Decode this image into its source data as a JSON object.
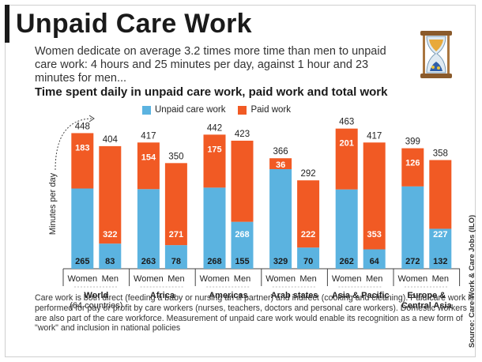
{
  "header": {
    "title": "Unpaid Care Work",
    "subtitle": "Women dedicate on average 3.2 times more time than men to unpaid care work: 4 hours and 25 minutes per day, against 1 hour and 23 minutes for men...",
    "chart_title": "Time spent daily in unpaid care work, paid work and total work"
  },
  "note": "Care work is both direct (feeding a baby or nursing an ill partner) and indirect (cooking and cleaning). Paid care work is performed for pay or profit by care workers (nurses, teachers, doctors and personal care workers). Domestic workers are also part of the care workforce. Measurement of unpaid care work would enable its recognition as a new form of \"work\" and inclusion in national policies",
  "source": "Source: Care Work & Care Jobs (ILO)",
  "colors": {
    "unpaid": "#5bb3e0",
    "paid": "#f15a24"
  },
  "chart_data": {
    "type": "bar",
    "stacked": true,
    "ylabel": "Minutes per day",
    "legend": [
      "Unpaid care work",
      "Paid work"
    ],
    "legend_position": "top",
    "groups": [
      {
        "label": "World",
        "sublabel": "(64 countries)"
      },
      {
        "label": "Africa",
        "sublabel": ""
      },
      {
        "label": "Americas",
        "sublabel": ""
      },
      {
        "label": "Arab states",
        "sublabel": ""
      },
      {
        "label": "Asia & Pacific",
        "sublabel": ""
      },
      {
        "label": "Europe &",
        "sublabel": "Central Asia"
      }
    ],
    "sexes": [
      "Women",
      "Men"
    ],
    "series": [
      {
        "name": "Unpaid care work",
        "values": [
          [
            265,
            83
          ],
          [
            263,
            78
          ],
          [
            268,
            155
          ],
          [
            329,
            70
          ],
          [
            262,
            64
          ],
          [
            272,
            132
          ]
        ]
      },
      {
        "name": "Paid work",
        "values": [
          [
            183,
            322
          ],
          [
            154,
            271
          ],
          [
            175,
            268
          ],
          [
            36,
            222
          ],
          [
            201,
            353
          ],
          [
            126,
            227
          ]
        ]
      }
    ],
    "totals": [
      [
        448,
        404
      ],
      [
        417,
        350
      ],
      [
        442,
        423
      ],
      [
        366,
        292
      ],
      [
        463,
        417
      ],
      [
        399,
        358
      ]
    ],
    "ylim": [
      0,
      470
    ]
  }
}
